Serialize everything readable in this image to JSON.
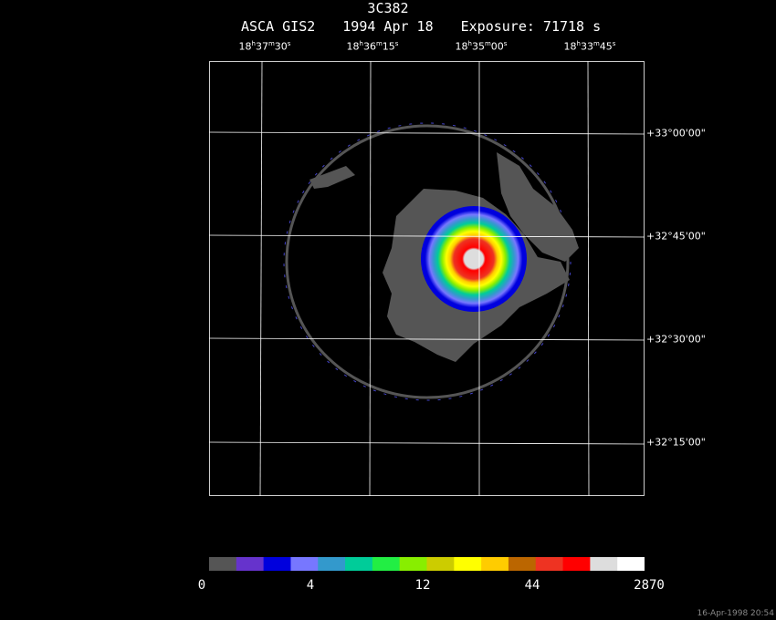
{
  "header": {
    "object": "3C382",
    "instrument": "ASCA GIS2",
    "date": "1994 Apr 18",
    "exposure": "Exposure: 71718 s"
  },
  "ra_ticks": [
    {
      "h": "18",
      "m": "37",
      "s": "30",
      "hs": "h",
      "ms": "m",
      "ss": "s"
    },
    {
      "h": "18",
      "m": "36",
      "s": "15",
      "hs": "h",
      "ms": "m",
      "ss": "s"
    },
    {
      "h": "18",
      "m": "35",
      "s": "00",
      "hs": "h",
      "ms": "m",
      "ss": "s"
    },
    {
      "h": "18",
      "m": "33",
      "s": "45",
      "hs": "h",
      "ms": "m",
      "ss": "s"
    }
  ],
  "dec_ticks": [
    "+33°00'00\"",
    "+32°45'00\"",
    "+32°30'00\"",
    "+32°15'00\""
  ],
  "colorbar": {
    "colors": [
      "#555555",
      "#6633cc",
      "#0000dd",
      "#7777ff",
      "#3399cc",
      "#00cc99",
      "#22ee44",
      "#88ee00",
      "#cccc00",
      "#ffff00",
      "#ffcc00",
      "#bb6600",
      "#ee3322",
      "#ff0000",
      "#dddddd",
      "#ffffff"
    ],
    "labels": [
      "0",
      "4",
      "12",
      "44",
      "2870"
    ]
  },
  "stamp": "16-Apr-1998 20:54"
}
